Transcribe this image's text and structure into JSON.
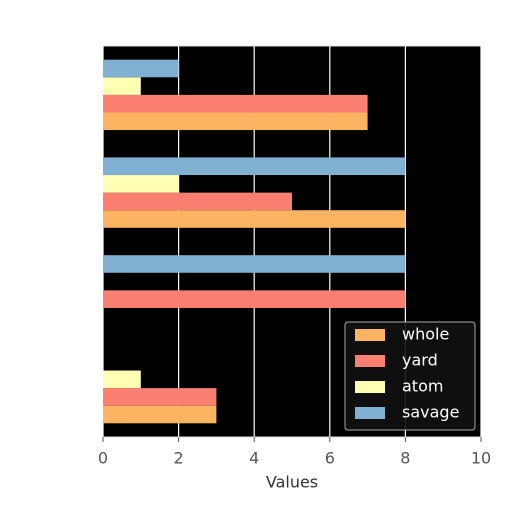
{
  "chart_data": {
    "type": "barh",
    "categories": [
      null,
      null,
      null,
      null
    ],
    "series": [
      {
        "name": "whole",
        "color": "#fdb462",
        "values": [
          3,
          0,
          8,
          7
        ]
      },
      {
        "name": "yard",
        "color": "#fb8072",
        "values": [
          3,
          8,
          5,
          7
        ]
      },
      {
        "name": "atom",
        "color": "#ffffb3",
        "values": [
          1,
          0,
          2,
          1
        ]
      },
      {
        "name": "savage",
        "color": "#80b1d3",
        "values": [
          0,
          8,
          8,
          2
        ]
      }
    ],
    "xlabel": "Values",
    "xlim": [
      0,
      10
    ],
    "xticks": [
      0,
      2,
      4,
      6,
      8,
      10
    ],
    "grid": true,
    "legend": "lower right"
  }
}
